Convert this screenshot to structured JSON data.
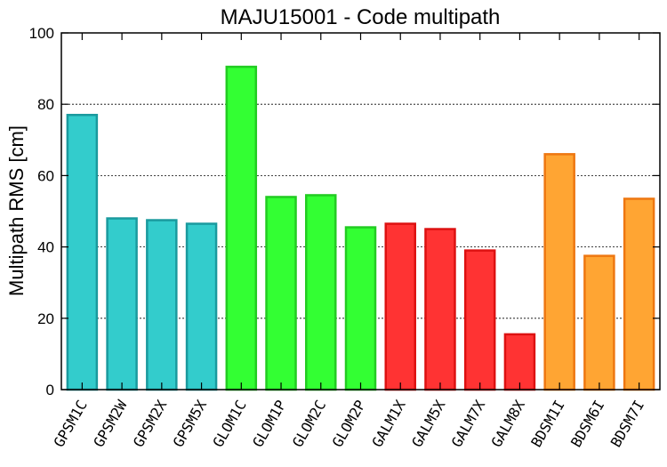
{
  "chart_data": {
    "type": "bar",
    "title": "MAJU15001 - Code multipath",
    "ylabel": "Multipath RMS [cm]",
    "xlabel": "",
    "ylim": [
      0,
      100
    ],
    "yticks": [
      0,
      20,
      40,
      60,
      80,
      100
    ],
    "grid": true,
    "categories": [
      "GPSM1C",
      "GPSM2W",
      "GPSM2X",
      "GPSM5X",
      "GLOM1C",
      "GLOM1P",
      "GLOM2C",
      "GLOM2P",
      "GALM1X",
      "GALM5X",
      "GALM7X",
      "GALM8X",
      "BDSM1I",
      "BDSM6I",
      "BDSM7I"
    ],
    "values": [
      77,
      48,
      47.5,
      46.5,
      90.5,
      54,
      54.5,
      45.5,
      46.5,
      45,
      39,
      15.5,
      66,
      37.5,
      53.5
    ],
    "colors": {
      "GPS": {
        "fill": "#33cccc",
        "stroke": "#1a9a9e"
      },
      "GLO": {
        "fill": "#33ff33",
        "stroke": "#22cc22"
      },
      "GAL": {
        "fill": "#ff3333",
        "stroke": "#dd1111"
      },
      "BDS": {
        "fill": "#ffa533",
        "stroke": "#ee7711"
      }
    }
  }
}
